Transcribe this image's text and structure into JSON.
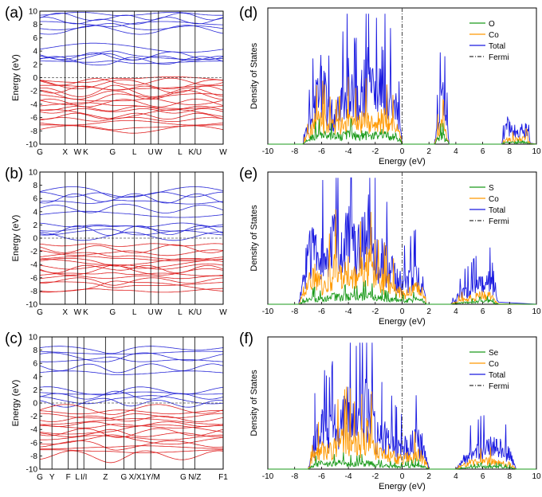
{
  "chart_data": [
    {
      "panel_label": "(a)",
      "type": "line",
      "subtype": "band-structure",
      "ylabel": "Energy (eV)",
      "ylim": [
        -10,
        10
      ],
      "yticks": [
        -10,
        -8,
        -6,
        -4,
        -2,
        0,
        2,
        4,
        6,
        8,
        10
      ],
      "kpoints": [
        "G",
        "X",
        "W",
        "K",
        "G",
        "L",
        "U",
        "W",
        "L",
        "K/U",
        "W"
      ],
      "kpoint_positions": [
        0,
        0.138,
        0.206,
        0.25,
        0.397,
        0.516,
        0.605,
        0.647,
        0.765,
        0.847,
        1.0
      ],
      "series": [
        {
          "band": "conduction",
          "color": "#2a2ad8",
          "levels": [
            2.3,
            2.6,
            2.9,
            3.1,
            3.3,
            4.5,
            7.2,
            7.5,
            8.2,
            8.6,
            9.2,
            9.6
          ]
        },
        {
          "band": "valence",
          "color": "#e02020",
          "levels": [
            -0.3,
            -0.6,
            -1.0,
            -1.4,
            -1.8,
            -2.2,
            -2.6,
            -3.0,
            -3.4,
            -3.8,
            -4.2,
            -4.6,
            -5.0,
            -5.4,
            -5.8,
            -6.3,
            -6.8,
            -7.3,
            -7.8
          ]
        }
      ],
      "fermi_level": 0
    },
    {
      "panel_label": "(b)",
      "type": "line",
      "subtype": "band-structure",
      "ylabel": "Energy (eV)",
      "ylim": [
        -10,
        10
      ],
      "yticks": [
        -10,
        -8,
        -6,
        -4,
        -2,
        0,
        2,
        4,
        6,
        8,
        10
      ],
      "kpoints": [
        "G",
        "X",
        "W",
        "K",
        "G",
        "L",
        "U",
        "W",
        "L",
        "K/U",
        "W"
      ],
      "kpoint_positions": [
        0,
        0.138,
        0.206,
        0.25,
        0.397,
        0.516,
        0.605,
        0.647,
        0.765,
        0.847,
        1.0
      ],
      "series": [
        {
          "band": "conduction",
          "color": "#2a2ad8",
          "levels": [
            0.3,
            0.8,
            1.2,
            1.6,
            2.0,
            3.6,
            4.4,
            5.4,
            6.0,
            6.6,
            7.1
          ]
        },
        {
          "band": "valence",
          "color": "#e02020",
          "levels": [
            -1.0,
            -1.6,
            -2.2,
            -2.7,
            -3.1,
            -3.5,
            -3.9,
            -4.3,
            -4.7,
            -5.1,
            -5.5,
            -5.9,
            -6.4,
            -6.9,
            -7.4,
            -7.9
          ]
        }
      ],
      "fermi_level": 0
    },
    {
      "panel_label": "(c)",
      "type": "line",
      "subtype": "band-structure",
      "ylabel": "Energy (eV)",
      "ylim": [
        -10,
        10
      ],
      "yticks": [
        -10,
        -8,
        -6,
        -4,
        -2,
        0,
        2,
        4,
        6,
        8,
        10
      ],
      "kpoints": [
        "G",
        "Y",
        "F",
        "L",
        "I/I",
        "Z",
        "G",
        "X/X",
        "1Y/M",
        "G",
        "N/Z",
        "F1"
      ],
      "kpoint_positions": [
        0,
        0.066,
        0.155,
        0.205,
        0.24,
        0.358,
        0.458,
        0.52,
        0.605,
        0.782,
        0.845,
        1.0
      ],
      "series": [
        {
          "band": "conduction",
          "color": "#2a2ad8",
          "levels": [
            -0.1,
            0.5,
            1.0,
            1.5,
            1.9,
            4.6,
            5.4,
            6.4,
            7.0,
            7.6,
            8.3
          ]
        },
        {
          "band": "valence",
          "color": "#e02020",
          "levels": [
            -0.9,
            -1.4,
            -1.9,
            -2.4,
            -2.8,
            -3.2,
            -3.6,
            -4.0,
            -4.4,
            -4.8,
            -5.2,
            -5.7,
            -6.2,
            -6.7,
            -7.3,
            -7.9
          ]
        }
      ],
      "fermi_level": 0
    },
    {
      "panel_label": "(d)",
      "type": "line",
      "subtype": "density-of-states",
      "xlabel": "Energy (eV)",
      "ylabel": "Density of States",
      "xlim": [
        -10,
        10
      ],
      "xticks": [
        -10,
        -8,
        -6,
        -4,
        -2,
        0,
        2,
        4,
        6,
        8,
        10
      ],
      "legend": [
        "O",
        "Co",
        "Total",
        "Fermi"
      ],
      "legend_position": "top-right",
      "fermi_level": 0,
      "series": [
        {
          "name": "O",
          "color": "#1a9a1a",
          "x": [
            -7.4,
            -7.0,
            -6.5,
            -6.0,
            -5.5,
            -5.0,
            -4.5,
            -4.0,
            -3.5,
            -3.0,
            -2.5,
            -2.0,
            -1.5,
            -1.0,
            -0.5,
            -0.1,
            0.0,
            2.4,
            2.7,
            3.0,
            3.3,
            3.5,
            7.4,
            7.8,
            8.6,
            9.2,
            9.6
          ],
          "y": [
            0,
            0.05,
            0.1,
            0.12,
            0.1,
            0.09,
            0.1,
            0.12,
            0.1,
            0.11,
            0.12,
            0.1,
            0.13,
            0.1,
            0.09,
            0.05,
            0,
            0,
            0.08,
            0.1,
            0.06,
            0,
            0,
            0.02,
            0.02,
            0.03,
            0
          ]
        },
        {
          "name": "Co",
          "color": "#ff9900",
          "x": [
            -7.4,
            -7.0,
            -6.5,
            -6.0,
            -5.5,
            -5.0,
            -4.5,
            -4.0,
            -3.5,
            -3.0,
            -2.5,
            -2.0,
            -1.5,
            -1.0,
            -0.5,
            -0.1,
            0.0,
            2.4,
            2.7,
            3.0,
            3.3,
            3.5,
            7.4,
            7.8,
            8.6,
            9.2,
            9.6
          ],
          "y": [
            0,
            0.1,
            0.25,
            0.3,
            0.22,
            0.2,
            0.22,
            0.3,
            0.25,
            0.28,
            0.3,
            0.22,
            0.32,
            0.25,
            0.2,
            0.1,
            0,
            0,
            0.15,
            0.22,
            0.12,
            0,
            0,
            0.05,
            0.06,
            0.08,
            0
          ]
        },
        {
          "name": "Total",
          "color": "#1a1ae0",
          "x": [
            -7.4,
            -7.0,
            -6.5,
            -6.0,
            -5.5,
            -5.0,
            -4.5,
            -4.0,
            -3.5,
            -3.0,
            -2.5,
            -2.0,
            -1.5,
            -1.0,
            -0.5,
            -0.1,
            0.0,
            2.4,
            2.7,
            3.0,
            3.3,
            3.5,
            7.4,
            7.8,
            8.6,
            9.2,
            9.6
          ],
          "y": [
            0,
            0.2,
            0.45,
            0.8,
            0.4,
            0.35,
            0.45,
            0.75,
            0.45,
            0.6,
            0.8,
            0.5,
            0.88,
            0.55,
            0.45,
            0.2,
            0,
            0,
            0.3,
            0.55,
            0.3,
            0,
            0,
            0.25,
            0.12,
            0.2,
            0
          ]
        }
      ]
    },
    {
      "panel_label": "(e)",
      "type": "line",
      "subtype": "density-of-states",
      "xlabel": "Energy (eV)",
      "ylabel": "Density of States",
      "xlim": [
        -10,
        10
      ],
      "xticks": [
        -10,
        -8,
        -6,
        -4,
        -2,
        0,
        2,
        4,
        6,
        8,
        10
      ],
      "legend": [
        "S",
        "Co",
        "Total",
        "Fermi"
      ],
      "legend_position": "top-right",
      "fermi_level": 0,
      "series": [
        {
          "name": "S",
          "color": "#1a9a1a",
          "x": [
            -7.7,
            -7.0,
            -6.5,
            -6.0,
            -5.5,
            -5.0,
            -4.5,
            -4.0,
            -3.5,
            -3.0,
            -2.5,
            -2.0,
            -1.5,
            -1.0,
            -0.5,
            0.0,
            0.5,
            1.0,
            1.5,
            1.8,
            3.6,
            4.5,
            5.5,
            6.5,
            7.2
          ],
          "y": [
            0,
            0.06,
            0.08,
            0.06,
            0.08,
            0.1,
            0.08,
            0.1,
            0.08,
            0.1,
            0.12,
            0.08,
            0.07,
            0.06,
            0.05,
            0.04,
            0.05,
            0.06,
            0.05,
            0,
            0,
            0.02,
            0.03,
            0.04,
            0
          ]
        },
        {
          "name": "Co",
          "color": "#ff9900",
          "x": [
            -7.7,
            -7.0,
            -6.5,
            -6.0,
            -5.5,
            -5.0,
            -4.5,
            -4.0,
            -3.5,
            -3.0,
            -2.5,
            -2.0,
            -1.5,
            -1.0,
            -0.5,
            0.0,
            0.5,
            1.0,
            1.5,
            1.8,
            3.6,
            4.5,
            5.5,
            6.5,
            7.2
          ],
          "y": [
            0,
            0.3,
            0.35,
            0.25,
            0.3,
            0.45,
            0.35,
            0.4,
            0.3,
            0.4,
            0.5,
            0.3,
            0.3,
            0.25,
            0.2,
            0.12,
            0.15,
            0.2,
            0.15,
            0,
            0,
            0.06,
            0.1,
            0.12,
            0
          ]
        },
        {
          "name": "Total",
          "color": "#1a1ae0",
          "x": [
            -7.7,
            -7.0,
            -6.5,
            -6.0,
            -5.5,
            -5.0,
            -4.5,
            -4.0,
            -3.5,
            -3.0,
            -2.5,
            -2.0,
            -1.5,
            -1.0,
            -0.5,
            0.0,
            0.5,
            1.0,
            1.5,
            1.8,
            3.6,
            4.5,
            5.5,
            6.5,
            7.2
          ],
          "y": [
            0,
            0.6,
            0.7,
            0.55,
            0.65,
            0.8,
            0.7,
            0.85,
            0.65,
            0.75,
            0.9,
            0.6,
            0.55,
            0.45,
            0.35,
            0.25,
            0.3,
            0.35,
            0.3,
            0,
            0,
            0.15,
            0.22,
            0.28,
            0
          ]
        }
      ]
    },
    {
      "panel_label": "(f)",
      "type": "line",
      "subtype": "density-of-states",
      "xlabel": "Energy (eV)",
      "ylabel": "Density of States",
      "xlim": [
        -10,
        10
      ],
      "xticks": [
        -10,
        -8,
        -6,
        -4,
        -2,
        0,
        2,
        4,
        6,
        8,
        10
      ],
      "legend": [
        "Se",
        "Co",
        "Total",
        "Fermi"
      ],
      "legend_position": "top-right",
      "fermi_level": 0,
      "series": [
        {
          "name": "Se",
          "color": "#1a9a1a",
          "x": [
            -7.0,
            -6.5,
            -6.0,
            -5.5,
            -5.0,
            -4.5,
            -4.0,
            -3.5,
            -3.0,
            -2.5,
            -2.0,
            -1.5,
            -1.0,
            -0.5,
            0.0,
            0.5,
            1.0,
            1.5,
            2.0,
            4.0,
            5.0,
            6.0,
            7.0,
            8.0,
            8.5
          ],
          "y": [
            0,
            0.06,
            0.07,
            0.06,
            0.07,
            0.08,
            0.07,
            0.06,
            0.07,
            0.08,
            0.05,
            0.04,
            0.04,
            0.03,
            0.03,
            0.04,
            0.05,
            0.04,
            0,
            0,
            0.02,
            0.03,
            0.03,
            0.02,
            0
          ]
        },
        {
          "name": "Co",
          "color": "#ff9900",
          "x": [
            -7.0,
            -6.5,
            -6.0,
            -5.5,
            -5.0,
            -4.5,
            -4.0,
            -3.5,
            -3.0,
            -2.5,
            -2.0,
            -1.5,
            -1.0,
            -0.5,
            0.0,
            0.5,
            1.0,
            1.5,
            2.0,
            4.0,
            5.0,
            6.0,
            7.0,
            8.0,
            8.5
          ],
          "y": [
            0,
            0.18,
            0.25,
            0.2,
            0.3,
            0.35,
            0.4,
            0.3,
            0.35,
            0.45,
            0.25,
            0.2,
            0.2,
            0.15,
            0.12,
            0.15,
            0.18,
            0.15,
            0,
            0,
            0.08,
            0.1,
            0.1,
            0.06,
            0
          ]
        },
        {
          "name": "Total",
          "color": "#1a1ae0",
          "x": [
            -7.0,
            -6.5,
            -6.0,
            -5.5,
            -5.0,
            -4.5,
            -4.0,
            -3.5,
            -3.0,
            -2.5,
            -2.0,
            -1.5,
            -1.0,
            -0.5,
            0.0,
            0.5,
            1.0,
            1.5,
            2.0,
            4.0,
            5.0,
            6.0,
            7.0,
            8.0,
            8.5
          ],
          "y": [
            0,
            0.35,
            0.5,
            0.4,
            0.55,
            0.6,
            0.7,
            0.55,
            0.65,
            0.85,
            0.45,
            0.4,
            0.38,
            0.3,
            0.25,
            0.3,
            0.35,
            0.3,
            0,
            0,
            0.2,
            0.25,
            0.28,
            0.18,
            0
          ]
        }
      ]
    }
  ]
}
